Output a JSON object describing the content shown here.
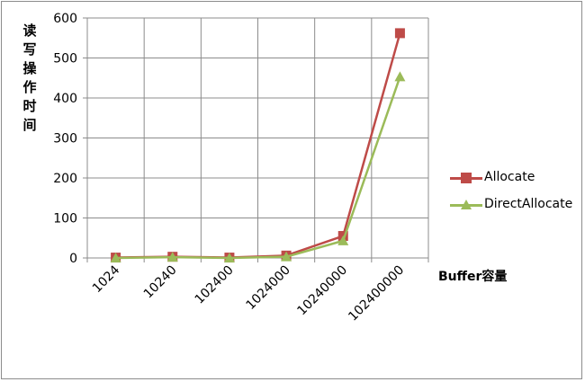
{
  "chart_data": {
    "type": "line",
    "title": "",
    "xlabel": "Buffer容量",
    "ylabel": "读写操作时间",
    "categories": [
      "1024",
      "10240",
      "102400",
      "1024000",
      "10240000",
      "102400000"
    ],
    "ylim": [
      0,
      600
    ],
    "yticks": [
      0,
      100,
      200,
      300,
      400,
      500,
      600
    ],
    "grid": true,
    "legend_position": "right",
    "series": [
      {
        "name": "Allocate",
        "color": "#be4b48",
        "marker": "square",
        "values": [
          1,
          3,
          1,
          6,
          55,
          562
        ]
      },
      {
        "name": "DirectAllocate",
        "color": "#9bbb59",
        "marker": "triangle",
        "values": [
          0,
          2,
          0,
          3,
          43,
          453
        ]
      }
    ]
  }
}
